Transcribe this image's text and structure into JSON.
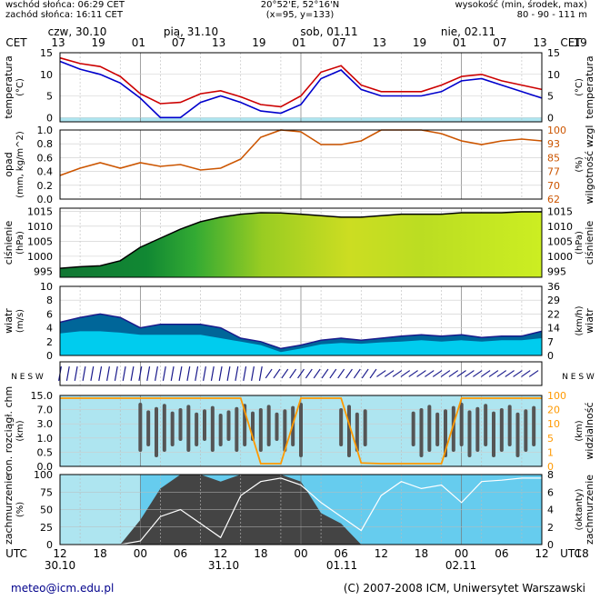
{
  "header": {
    "sunrise": "wschód słońca: 06:29 CET",
    "sunset": "zachód słońca: 16:11 CET",
    "location": "20°52'E, 52°16'N",
    "grid": "(x=95, y=133)",
    "elevation_label": "wysokość (min, środek, max)",
    "elevation_values": "80 - 90 - 111 m"
  },
  "top_axis": {
    "tz": "CET",
    "day_labels": [
      "czw, 30.10",
      "pią, 31.10",
      "sob, 01.11",
      "nie, 02.11"
    ],
    "hour_labels": [
      "13",
      "19",
      "01",
      "07",
      "13",
      "19",
      "01",
      "07",
      "13",
      "19",
      "01",
      "07",
      "13",
      "19",
      "01"
    ]
  },
  "bottom_axis": {
    "tz": "UTC",
    "hour_labels": [
      "12",
      "18",
      "00",
      "06",
      "12",
      "18",
      "00",
      "06",
      "12",
      "18",
      "00",
      "06",
      "12",
      "18",
      "00"
    ],
    "date_labels": [
      "30.10",
      "31.10",
      "01.11",
      "02.11"
    ]
  },
  "footer": {
    "email": "meteo@icm.edu.pl",
    "copyright": "(C) 2007-2008 ICM, Uniwersytet Warszawski"
  },
  "colors": {
    "temperature_max": "#cc0000",
    "temperature_avg": "#0000cc",
    "humidity": "#cc5500",
    "pressure_high": "#ccee22",
    "pressure_low": "#008833",
    "wind_area": "#00ccee",
    "wind_gust_area": "#006699",
    "cloud_dark": "#555555",
    "visibility": "#ff9900",
    "sky_light": "#aee5f0",
    "sky_dark": "#66ccee"
  },
  "chart_data": [
    {
      "type": "line",
      "name": "temperatura",
      "ylabel_left": "temperatura",
      "unit_left": "(°C)",
      "ylabel_right": "temperatura",
      "unit_right": "(°C)",
      "ylim": [
        -1,
        15
      ],
      "yticks": [
        0,
        5,
        10,
        15
      ],
      "x_hours_utc": [
        0,
        3,
        6,
        9,
        12,
        15,
        18,
        21,
        24,
        27,
        30,
        33,
        36,
        39,
        42,
        45,
        48,
        51,
        54,
        57,
        60,
        63,
        66,
        69,
        72
      ],
      "series": [
        {
          "role": "upper",
          "values": [
            13.8,
            12.5,
            11.8,
            9.5,
            5.5,
            3.2,
            3.5,
            5.5,
            6.2,
            4.8,
            3.0,
            2.5,
            5.0,
            10.5,
            12.0,
            7.5,
            6.0,
            6.0,
            6.0,
            7.5,
            9.5,
            10.0,
            8.5,
            7.5,
            6.5
          ]
        },
        {
          "role": "lower",
          "values": [
            13.0,
            11.2,
            10.0,
            8.0,
            4.5,
            0.0,
            0.0,
            3.5,
            5.0,
            3.5,
            1.5,
            1.0,
            3.0,
            9.0,
            11.0,
            6.5,
            5.0,
            5.0,
            5.0,
            6.0,
            8.5,
            9.0,
            7.5,
            6.0,
            4.5
          ]
        }
      ]
    },
    {
      "type": "line",
      "name": "opad_wilgotnosc",
      "ylabel_left": "opad",
      "unit_left": "(mm, kg/m^2)",
      "ylabel_right": "wilgotność wzgl",
      "unit_right": "(%)",
      "ylim_left": [
        0,
        1.0
      ],
      "yticks_left": [
        0.0,
        0.2,
        0.4,
        0.6,
        0.8,
        1.0
      ],
      "yticks_right": [
        62,
        70,
        77,
        85,
        93,
        100
      ],
      "x_hours_utc": [
        0,
        3,
        6,
        9,
        12,
        15,
        18,
        21,
        24,
        27,
        30,
        33,
        36,
        39,
        42,
        45,
        48,
        51,
        54,
        57,
        60,
        63,
        66,
        69,
        72
      ],
      "series": [
        {
          "role": "humidity",
          "values": [
            75,
            79,
            82,
            79,
            82,
            80,
            81,
            78,
            79,
            84,
            96,
            100,
            99,
            92,
            92,
            94,
            100,
            100,
            100,
            98,
            94,
            92,
            94,
            95,
            94
          ]
        }
      ]
    },
    {
      "type": "area",
      "name": "cisnienie",
      "ylabel_left": "ciśnienie",
      "unit_left": "(hPa)",
      "ylabel_right": "ciśnienie",
      "unit_right": "(hPa)",
      "ylim": [
        993,
        1016
      ],
      "yticks": [
        995,
        1000,
        1005,
        1010,
        1015
      ],
      "x_hours_utc": [
        0,
        3,
        6,
        9,
        12,
        15,
        18,
        21,
        24,
        27,
        30,
        33,
        36,
        39,
        42,
        45,
        48,
        51,
        54,
        57,
        60,
        63,
        66,
        69,
        72
      ],
      "values": [
        996.0,
        996.5,
        996.8,
        998.5,
        1003.0,
        1006.0,
        1009.0,
        1011.5,
        1013.0,
        1014.0,
        1014.5,
        1014.4,
        1014.0,
        1013.5,
        1013.0,
        1013.0,
        1013.5,
        1014.0,
        1014.0,
        1014.0,
        1014.5,
        1014.5,
        1014.5,
        1014.8,
        1014.8
      ]
    },
    {
      "type": "area",
      "name": "wiatr",
      "ylabel_left": "wiatr",
      "unit_left": "(m/s)",
      "ylabel_right": "wiatr",
      "unit_right": "(km/h)",
      "ylim": [
        0,
        10
      ],
      "yticks_left": [
        0,
        2,
        4,
        6,
        8,
        10
      ],
      "yticks_right": [
        0,
        7,
        14,
        22,
        29,
        36
      ],
      "x_hours_utc": [
        0,
        3,
        6,
        9,
        12,
        15,
        18,
        21,
        24,
        27,
        30,
        33,
        36,
        39,
        42,
        45,
        48,
        51,
        54,
        57,
        60,
        63,
        66,
        69,
        72
      ],
      "series": [
        {
          "role": "gusts",
          "values": [
            4.8,
            5.5,
            6.0,
            5.5,
            4.0,
            4.5,
            4.5,
            4.5,
            4.0,
            2.5,
            2.0,
            1.0,
            1.5,
            2.2,
            2.5,
            2.2,
            2.5,
            2.8,
            3.0,
            2.8,
            3.0,
            2.6,
            2.8,
            2.8,
            3.5
          ]
        },
        {
          "role": "mean",
          "values": [
            3.2,
            3.5,
            3.5,
            3.3,
            3.0,
            3.0,
            3.0,
            3.0,
            2.5,
            2.0,
            1.5,
            0.5,
            1.0,
            1.6,
            1.8,
            1.7,
            1.9,
            2.0,
            2.2,
            2.0,
            2.2,
            2.0,
            2.2,
            2.2,
            2.5
          ]
        }
      ]
    },
    {
      "type": "scatter",
      "name": "kierunek_wiatru",
      "ylabel_right": "N E S W"
    },
    {
      "type": "bar",
      "name": "chmury_widzialnosc",
      "ylabel_left": "ron. rozciągł. chm",
      "unit_left": "(km)",
      "ylabel_right": "widzialność",
      "unit_right": "(km)",
      "yticks_left": [
        "0.0",
        "0.5",
        "1.0",
        "3.0",
        "7.0",
        "15.0"
      ],
      "yticks_right": [
        "0",
        "1",
        "5",
        "10",
        "20",
        "100"
      ],
      "x_hours_utc": [
        0,
        3,
        6,
        9,
        12,
        15,
        18,
        21,
        24,
        27,
        30,
        33,
        36,
        39,
        42,
        45,
        48,
        51,
        54,
        57,
        60,
        63,
        66,
        69,
        72
      ],
      "series": [
        {
          "role": "visibility",
          "values": [
            100,
            100,
            100,
            100,
            100,
            100,
            100,
            100,
            100,
            100,
            0,
            0,
            100,
            100,
            100,
            1,
            0,
            0,
            0,
            0,
            100,
            100,
            100,
            100,
            100
          ]
        }
      ]
    },
    {
      "type": "area",
      "name": "zachmurzenie",
      "ylabel_left": "zachmurzenie",
      "unit_left": "(%)",
      "ylabel_right": "zachmurzenie",
      "unit_right": "(oktanty)",
      "ylim": [
        0,
        100
      ],
      "yticks_left": [
        0,
        25,
        50,
        75,
        100
      ],
      "yticks_right": [
        0,
        2,
        4,
        6,
        8
      ],
      "x_hours_utc": [
        0,
        3,
        6,
        9,
        12,
        15,
        18,
        21,
        24,
        27,
        30,
        33,
        36,
        39,
        42,
        45,
        48,
        51,
        54,
        57,
        60,
        63,
        66,
        69,
        72
      ],
      "series": [
        {
          "role": "total",
          "values": [
            0,
            0,
            0,
            0,
            35,
            80,
            100,
            100,
            90,
            100,
            100,
            100,
            90,
            45,
            30,
            0,
            0,
            0,
            0,
            0,
            0,
            0,
            0,
            0,
            0
          ]
        },
        {
          "role": "line",
          "values": [
            0,
            0,
            0,
            0,
            5,
            40,
            50,
            30,
            10,
            70,
            90,
            95,
            85,
            60,
            40,
            20,
            70,
            90,
            80,
            85,
            60,
            90,
            92,
            95,
            95
          ]
        }
      ]
    }
  ]
}
